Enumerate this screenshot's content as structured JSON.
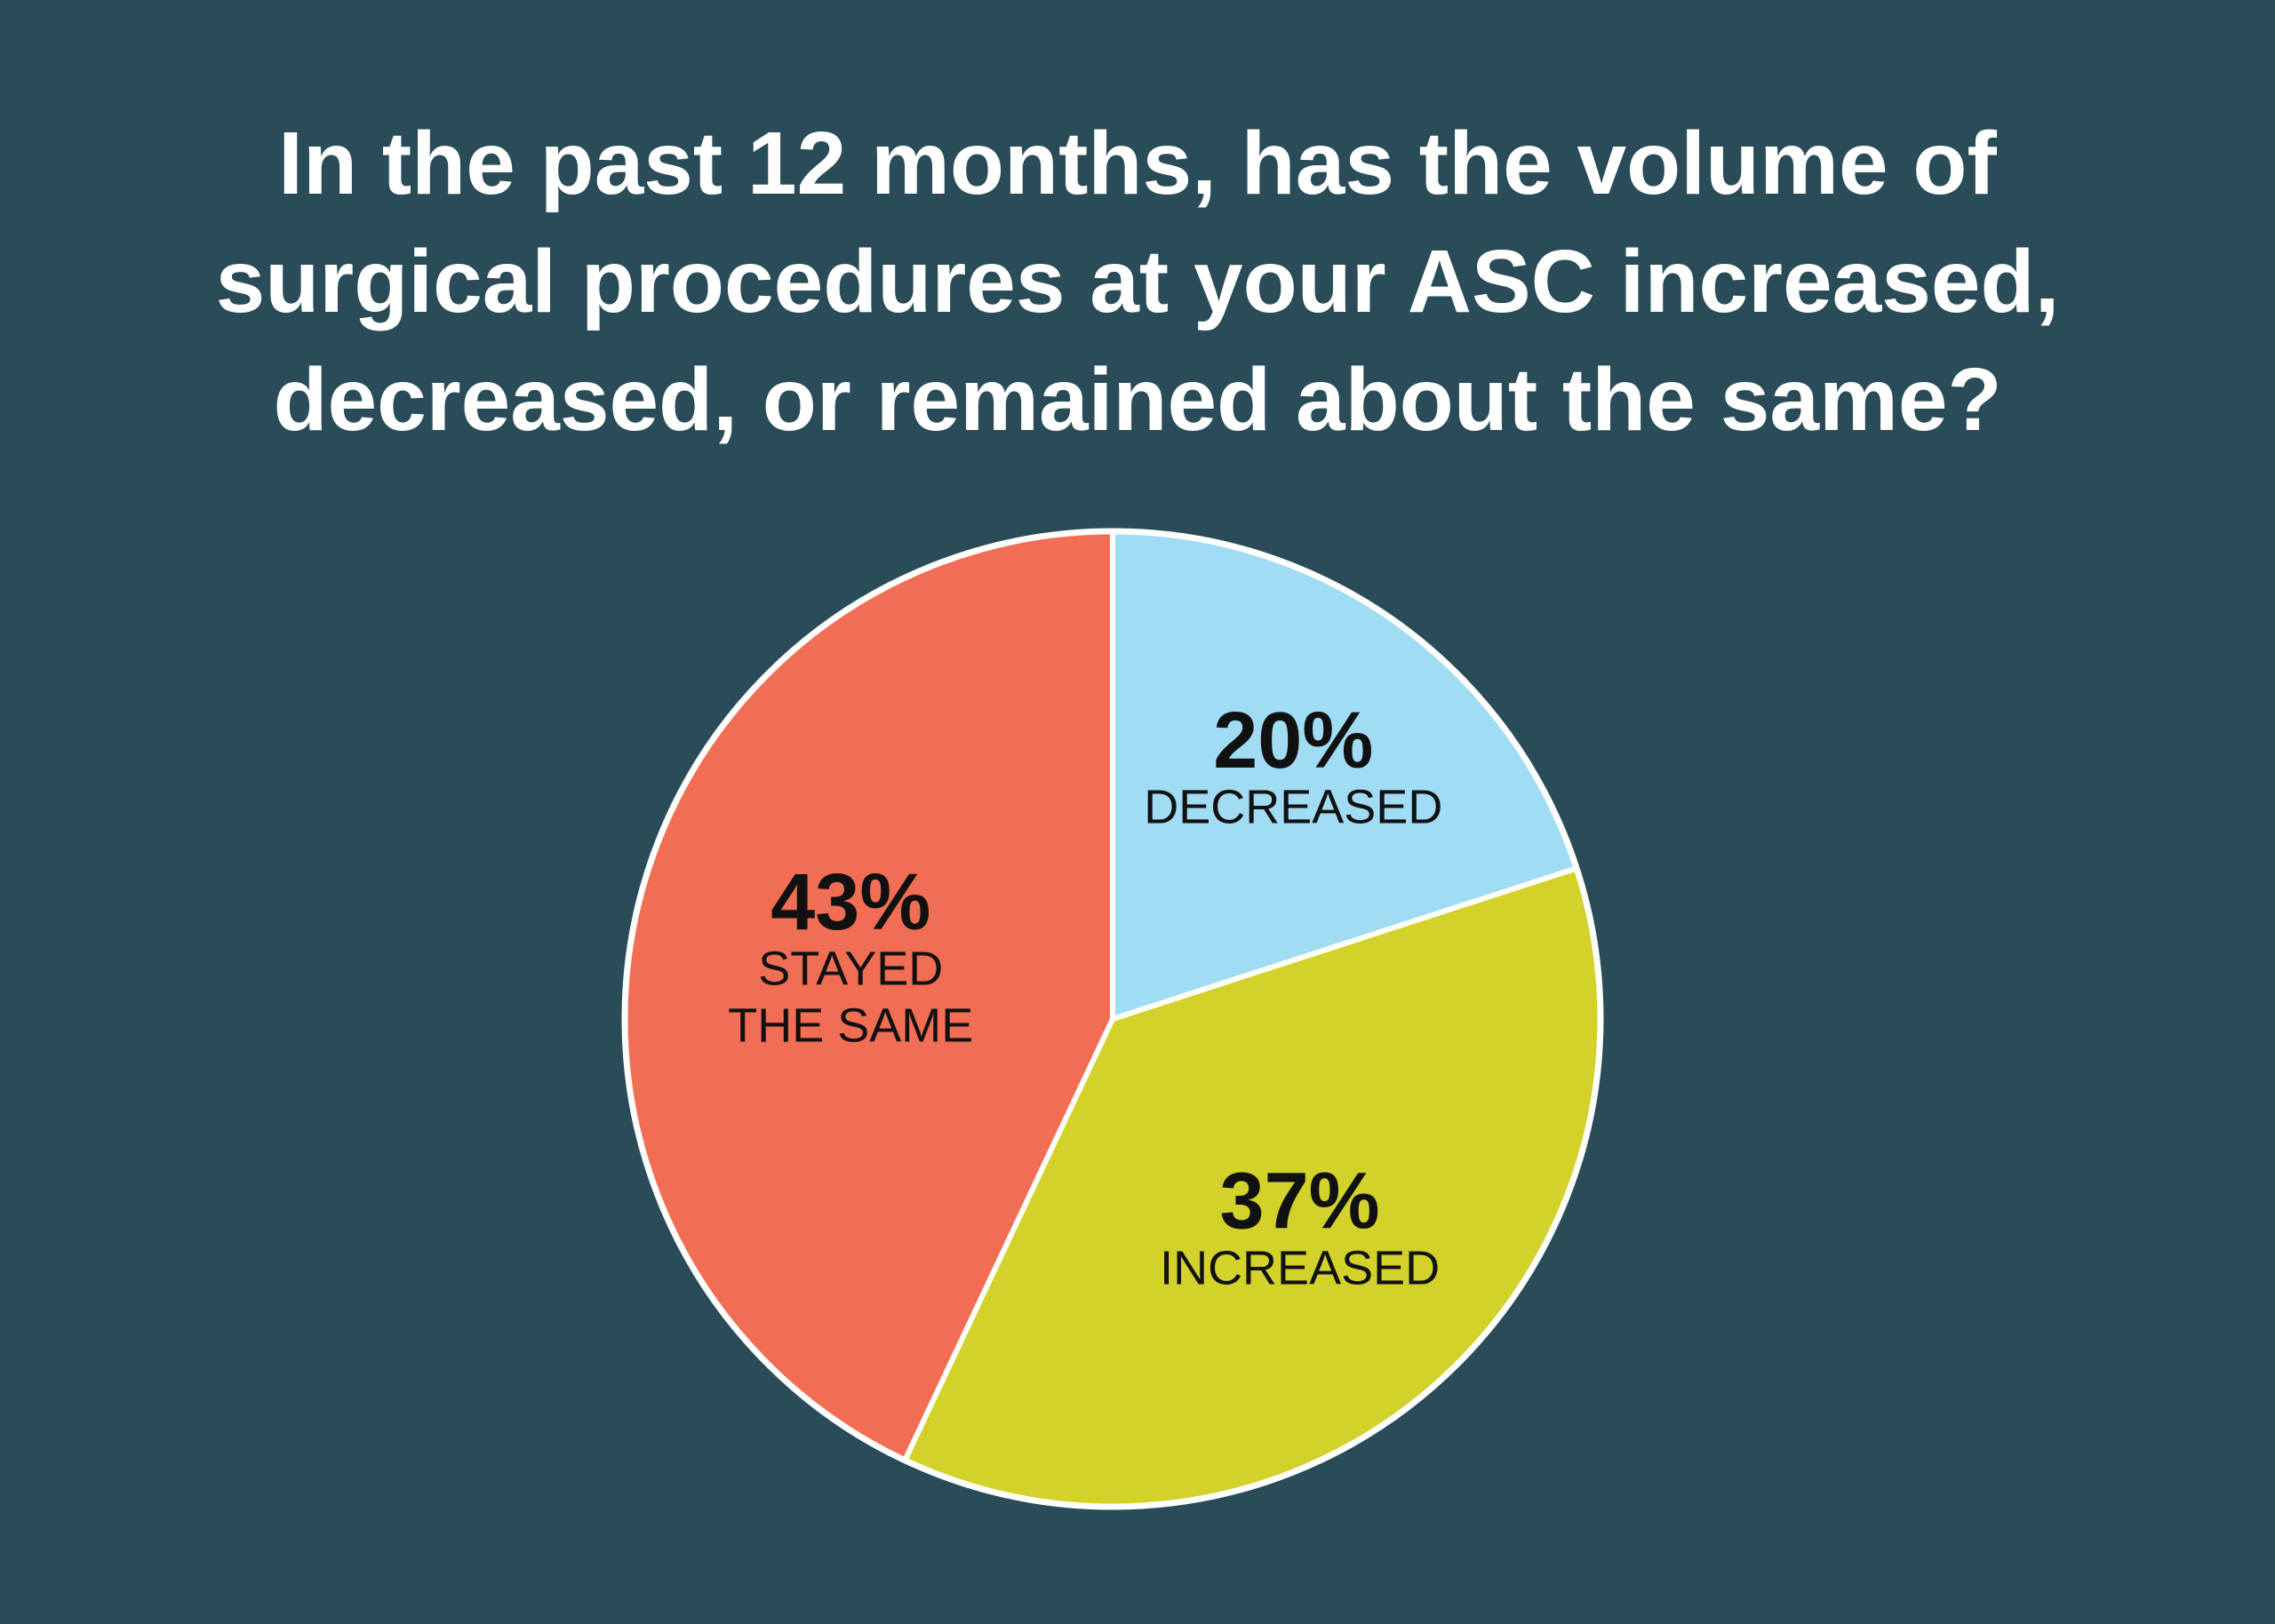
{
  "title_lines": [
    "In the past 12 months, has the volume of",
    "surgical procedures at your ASC increased,",
    "decreased, or remained about the same?"
  ],
  "colors": {
    "background": "#294c58",
    "title": "#ffffff",
    "outline": "#ffffff"
  },
  "chart_data": {
    "type": "pie",
    "title": "In the past 12 months, has the volume of surgical procedures at your ASC increased, decreased, or remained about the same?",
    "slices": [
      {
        "category_lines": [
          "DECREASED"
        ],
        "value": 20,
        "value_label": "20%",
        "color": "#a0dcf3"
      },
      {
        "category_lines": [
          "INCREASED"
        ],
        "value": 37,
        "value_label": "37%",
        "color": "#d2d22a"
      },
      {
        "category_lines": [
          "STAYED",
          "THE SAME"
        ],
        "value": 43,
        "value_label": "43%",
        "color": "#f16e54"
      }
    ],
    "start": "12 o'clock",
    "direction": "clockwise",
    "legend": "none"
  }
}
